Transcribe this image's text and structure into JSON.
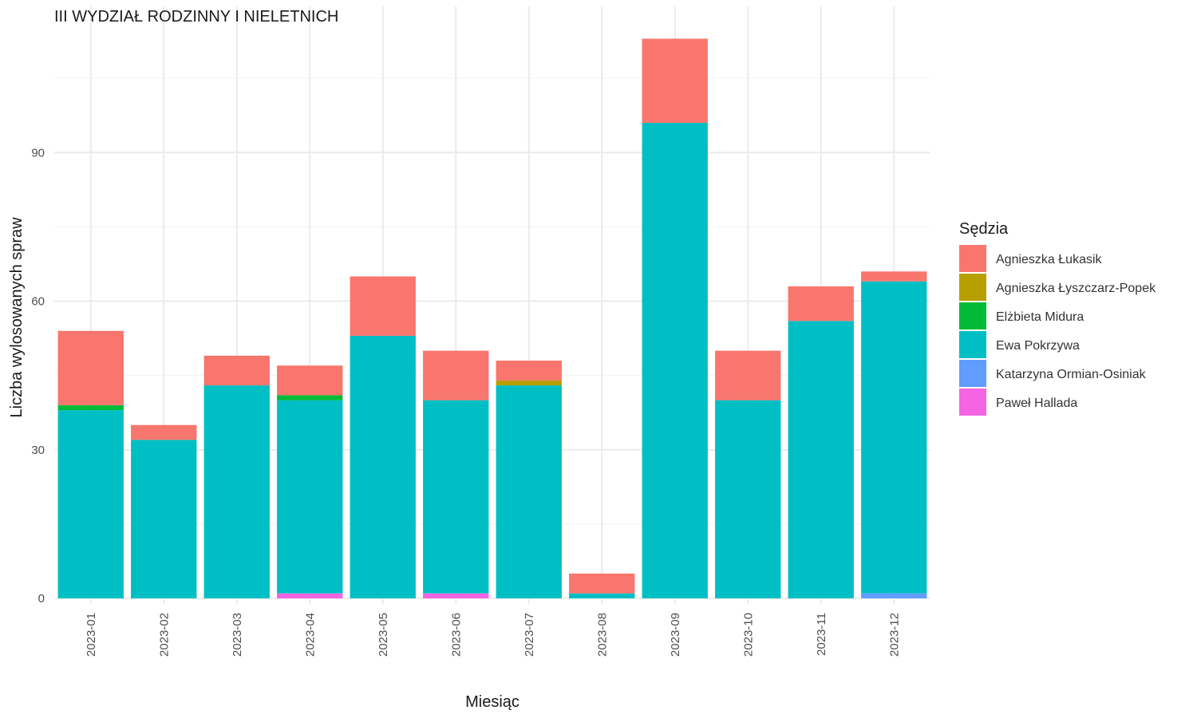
{
  "chart_data": {
    "type": "bar",
    "stacked": true,
    "title": "III WYDZIAŁ RODZINNY I NIELETNICH",
    "xlabel": "Miesiąc",
    "ylabel": "Liczba wylosowanych spraw",
    "ylim": [
      -1,
      115
    ],
    "yticks": [
      0,
      30,
      60,
      90
    ],
    "grid": true,
    "legend_title": "Sędzia",
    "legend_position": "right",
    "categories": [
      "2023-01",
      "2023-02",
      "2023-03",
      "2023-04",
      "2023-05",
      "2023-06",
      "2023-07",
      "2023-08",
      "2023-09",
      "2023-10",
      "2023-11",
      "2023-12"
    ],
    "series": [
      {
        "name": "Paweł Hallada",
        "color": "#F564E3",
        "values": [
          0,
          0,
          0,
          1,
          0,
          1,
          0,
          0,
          0,
          0,
          0,
          0
        ]
      },
      {
        "name": "Katarzyna Ormian-Osiniak",
        "color": "#619CFF",
        "values": [
          0,
          0,
          0,
          0,
          0,
          0,
          0,
          0,
          0,
          0,
          0,
          1
        ]
      },
      {
        "name": "Ewa Pokrzywa",
        "color": "#00BFC4",
        "values": [
          38,
          32,
          43,
          39,
          53,
          39,
          43,
          1,
          96,
          40,
          56,
          63
        ]
      },
      {
        "name": "Elżbieta Midura",
        "color": "#00BA38",
        "values": [
          1,
          0,
          0,
          1,
          0,
          0,
          0,
          0,
          0,
          0,
          0,
          0
        ]
      },
      {
        "name": "Agnieszka Łyszczarz-Popek",
        "color": "#B79F00",
        "values": [
          0,
          0,
          0,
          0,
          0,
          0,
          1,
          0,
          0,
          0,
          0,
          0
        ]
      },
      {
        "name": "Agnieszka Łukasik",
        "color": "#F8766D",
        "values": [
          15,
          3,
          6,
          6,
          12,
          10,
          4,
          4,
          17,
          10,
          7,
          2
        ]
      }
    ],
    "legend_order": [
      "Agnieszka Łukasik",
      "Agnieszka Łyszczarz-Popek",
      "Elżbieta Midura",
      "Ewa Pokrzywa",
      "Katarzyna Ormian-Osiniak",
      "Paweł Hallada"
    ]
  }
}
